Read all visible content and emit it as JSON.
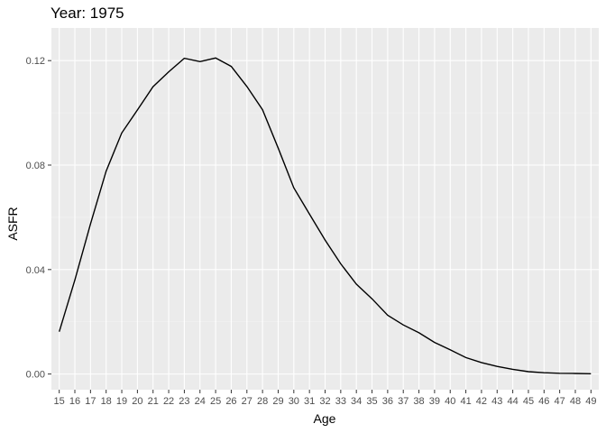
{
  "chart_data": {
    "type": "line",
    "title": "Year: 1975",
    "xlabel": "Age",
    "ylabel": "ASFR",
    "xlim": [
      14.5,
      49.5
    ],
    "ylim": [
      -0.006,
      0.1325
    ],
    "x_ticks": [
      15,
      16,
      17,
      18,
      19,
      20,
      21,
      22,
      23,
      24,
      25,
      26,
      27,
      28,
      29,
      30,
      31,
      32,
      33,
      34,
      35,
      36,
      37,
      38,
      39,
      40,
      41,
      42,
      43,
      44,
      45,
      46,
      47,
      48,
      49
    ],
    "x_tick_labels": [
      "15",
      "16",
      "17",
      "18",
      "19",
      "20",
      "21",
      "22",
      "23",
      "24",
      "25",
      "26",
      "27",
      "28",
      "29",
      "30",
      "31",
      "32",
      "33",
      "34",
      "35",
      "36",
      "37",
      "38",
      "39",
      "40",
      "41",
      "42",
      "43",
      "44",
      "45",
      "46",
      "47",
      "48",
      "49"
    ],
    "y_ticks": [
      0.0,
      0.04,
      0.08,
      0.12
    ],
    "y_tick_labels": [
      "0.00",
      "0.04",
      "0.08",
      "0.12"
    ],
    "grid": true,
    "series": [
      {
        "x": [
          15,
          16,
          17,
          18,
          19,
          20,
          21,
          22,
          23,
          24,
          25,
          26,
          27,
          28,
          29,
          30,
          31,
          32,
          33,
          34,
          35,
          36,
          37,
          38,
          39,
          40,
          41,
          42,
          43,
          44,
          45,
          46,
          47,
          48,
          49
        ],
        "values": [
          0.0162,
          0.036,
          0.0575,
          0.0777,
          0.0923,
          0.1011,
          0.11,
          0.1157,
          0.1209,
          0.1196,
          0.121,
          0.1178,
          0.1101,
          0.1012,
          0.0865,
          0.0713,
          0.0612,
          0.0513,
          0.0422,
          0.0344,
          0.0288,
          0.0225,
          0.0188,
          0.0158,
          0.0121,
          0.0093,
          0.0063,
          0.0044,
          0.0029,
          0.0018,
          0.0009,
          0.0005,
          0.0003,
          0.0002,
          0.0001
        ]
      }
    ],
    "colors": {
      "panel_bg": "#ebebeb",
      "grid_major": "#ffffff",
      "grid_minor": "#f4f4f4",
      "line": "#000000",
      "tick_text": "#4d4d4d",
      "tick_mark": "#333333"
    }
  }
}
